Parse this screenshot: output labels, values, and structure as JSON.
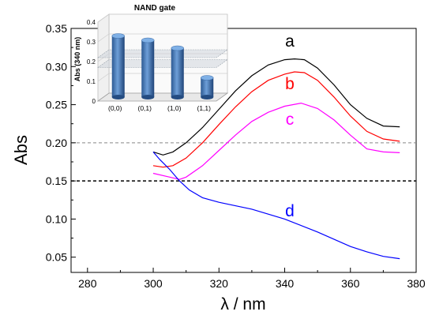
{
  "chart_data": [
    {
      "type": "line",
      "xlabel": "λ / nm",
      "ylabel": "Abs",
      "xlim": [
        275,
        380
      ],
      "ylim": [
        0.03,
        0.35
      ],
      "x_ticks": [
        280,
        300,
        320,
        340,
        360,
        380
      ],
      "y_ticks": [
        0.05,
        0.1,
        0.15,
        0.2,
        0.25,
        0.3,
        0.35
      ],
      "x_tick_labels": [
        "280",
        "300",
        "320",
        "340",
        "360",
        "380"
      ],
      "y_tick_labels": [
        "0.05",
        "0.10",
        "0.15",
        "0.20",
        "0.25",
        "0.30",
        "0.35"
      ],
      "grid": false,
      "reference_lines": [
        {
          "y": 0.2,
          "style": "dashed",
          "color": "#888888"
        },
        {
          "y": 0.15,
          "style": "dashed",
          "color": "#000000"
        }
      ],
      "series": [
        {
          "name": "a",
          "color": "#000000",
          "x": [
            300,
            303,
            306,
            310,
            315,
            320,
            325,
            330,
            335,
            340,
            343,
            346,
            350,
            355,
            360,
            365,
            370,
            375
          ],
          "y": [
            0.188,
            0.184,
            0.188,
            0.2,
            0.22,
            0.244,
            0.268,
            0.288,
            0.302,
            0.309,
            0.31,
            0.309,
            0.298,
            0.276,
            0.25,
            0.232,
            0.222,
            0.221
          ]
        },
        {
          "name": "b",
          "color": "#ff0000",
          "x": [
            300,
            303,
            306,
            310,
            315,
            320,
            325,
            330,
            335,
            340,
            343,
            346,
            350,
            355,
            360,
            365,
            370,
            375
          ],
          "y": [
            0.17,
            0.168,
            0.17,
            0.18,
            0.2,
            0.224,
            0.247,
            0.267,
            0.282,
            0.29,
            0.293,
            0.292,
            0.282,
            0.26,
            0.235,
            0.215,
            0.205,
            0.202
          ]
        },
        {
          "name": "c",
          "color": "#ff00ff",
          "x": [
            300,
            305,
            308,
            310,
            315,
            320,
            325,
            330,
            335,
            340,
            345,
            350,
            355,
            360,
            365,
            370,
            375
          ],
          "y": [
            0.16,
            0.155,
            0.152,
            0.155,
            0.17,
            0.19,
            0.21,
            0.228,
            0.24,
            0.248,
            0.252,
            0.245,
            0.23,
            0.21,
            0.192,
            0.188,
            0.187
          ]
        },
        {
          "name": "d",
          "color": "#0000ff",
          "x": [
            300,
            302,
            305,
            308,
            311,
            315,
            320,
            330,
            340,
            350,
            360,
            365,
            370,
            375
          ],
          "y": [
            0.188,
            0.178,
            0.165,
            0.15,
            0.138,
            0.128,
            0.122,
            0.113,
            0.1,
            0.083,
            0.064,
            0.057,
            0.051,
            0.048
          ]
        }
      ]
    },
    {
      "type": "bar",
      "title": "NAND gate",
      "ylabel": "Abs (340 nm)",
      "ylim": [
        0,
        0.4
      ],
      "y_ticks": [
        0,
        0.1,
        0.2,
        0.3,
        0.4
      ],
      "y_tick_labels": [
        "0",
        "0.1",
        "0.2",
        "0.3",
        "0.4"
      ],
      "categories": [
        "(0,0)",
        "(0,1)",
        "(1,0)",
        "(1,1)"
      ],
      "values": [
        0.31,
        0.288,
        0.248,
        0.098
      ],
      "threshold_band": [
        0.17,
        0.22
      ],
      "bar_color": "#4a7ebb"
    }
  ]
}
